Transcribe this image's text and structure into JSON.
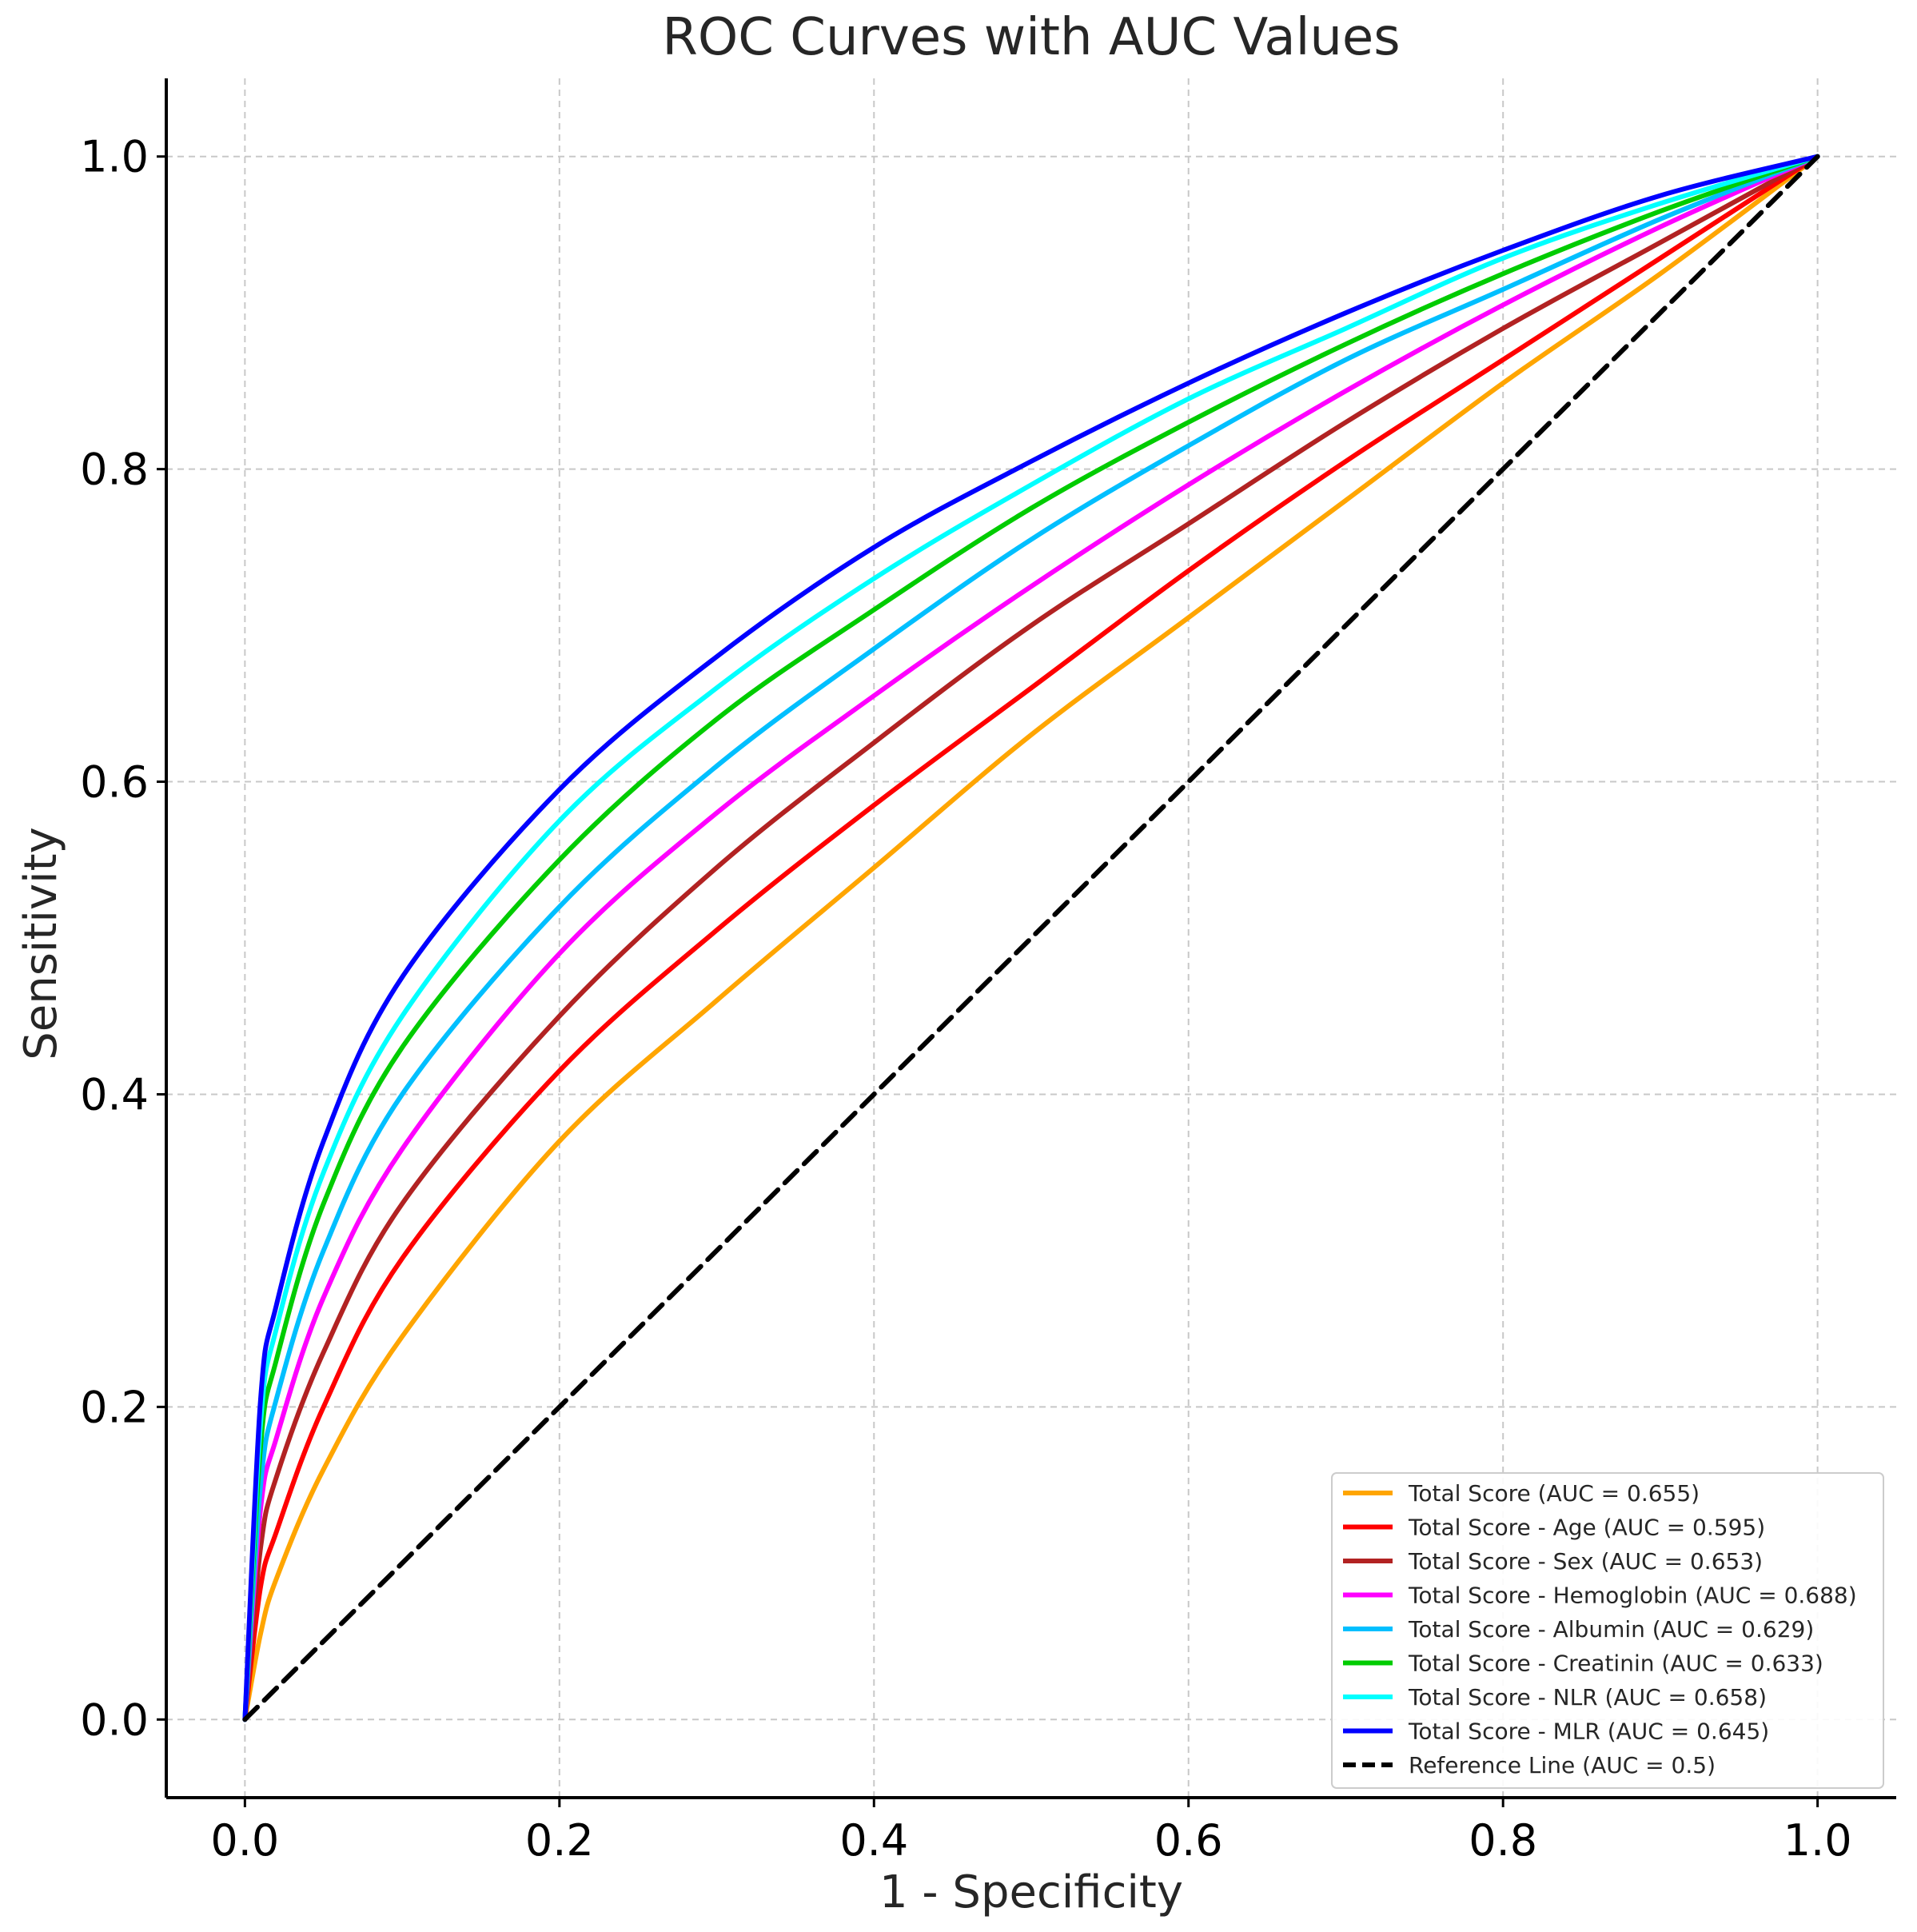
{
  "chart_data": {
    "type": "line",
    "title": "ROC Curves with AUC Values",
    "xlabel": "1 - Specificity",
    "ylabel": "Sensitivity",
    "xlim": [
      -0.05,
      1.05
    ],
    "ylim": [
      -0.05,
      1.05
    ],
    "xticks": [
      0.0,
      0.2,
      0.4,
      0.6,
      0.8,
      1.0
    ],
    "yticks": [
      0.0,
      0.2,
      0.4,
      0.6,
      0.8,
      1.0
    ],
    "xtick_labels": [
      "0.0",
      "0.2",
      "0.4",
      "0.6",
      "0.8",
      "1.0"
    ],
    "ytick_labels": [
      "0.0",
      "0.2",
      "0.4",
      "0.6",
      "0.8",
      "1.0"
    ],
    "grid": true,
    "legend_position": "bottom-right",
    "x": [
      0.0,
      0.01,
      0.02,
      0.05,
      0.1,
      0.2,
      0.3,
      0.4,
      0.5,
      0.6,
      0.7,
      0.8,
      0.9,
      1.0
    ],
    "series": [
      {
        "name": "Total Score (AUC = 0.655)",
        "color": "#ffa500",
        "dashed": false,
        "values": [
          0.0,
          0.055,
          0.09,
          0.16,
          0.245,
          0.37,
          0.46,
          0.545,
          0.63,
          0.705,
          0.78,
          0.855,
          0.925,
          1.0
        ]
      },
      {
        "name": "Total Score - Age (AUC = 0.595)",
        "color": "#ff0000",
        "dashed": false,
        "values": [
          0.0,
          0.085,
          0.12,
          0.2,
          0.295,
          0.415,
          0.505,
          0.585,
          0.66,
          0.735,
          0.805,
          0.87,
          0.935,
          1.0
        ]
      },
      {
        "name": "Total Score - Sex (AUC = 0.653)",
        "color": "#b22222",
        "dashed": false,
        "values": [
          0.0,
          0.11,
          0.155,
          0.235,
          0.33,
          0.45,
          0.545,
          0.625,
          0.7,
          0.765,
          0.83,
          0.89,
          0.945,
          1.0
        ]
      },
      {
        "name": "Total Score - Hemoglobin (AUC = 0.688)",
        "color": "#ff00ff",
        "dashed": false,
        "values": [
          0.0,
          0.135,
          0.18,
          0.27,
          0.365,
          0.49,
          0.58,
          0.655,
          0.725,
          0.79,
          0.85,
          0.905,
          0.955,
          1.0
        ]
      },
      {
        "name": "Total Score - Albumin (AUC = 0.629)",
        "color": "#00bfff",
        "dashed": false,
        "values": [
          0.0,
          0.15,
          0.205,
          0.3,
          0.4,
          0.52,
          0.61,
          0.685,
          0.755,
          0.815,
          0.87,
          0.915,
          0.96,
          1.0
        ]
      },
      {
        "name": "Total Score - Creatinin (AUC = 0.633)",
        "color": "#00cc00",
        "dashed": false,
        "values": [
          0.0,
          0.175,
          0.23,
          0.33,
          0.43,
          0.55,
          0.64,
          0.71,
          0.775,
          0.83,
          0.88,
          0.925,
          0.965,
          1.0
        ]
      },
      {
        "name": "Total Score - NLR (AUC = 0.658)",
        "color": "#00ffff",
        "dashed": false,
        "values": [
          0.0,
          0.19,
          0.25,
          0.35,
          0.45,
          0.575,
          0.66,
          0.73,
          0.79,
          0.845,
          0.89,
          0.935,
          0.97,
          1.0
        ]
      },
      {
        "name": "Total Score - MLR (AUC = 0.645)",
        "color": "#0000ff",
        "dashed": false,
        "values": [
          0.0,
          0.205,
          0.265,
          0.37,
          0.475,
          0.595,
          0.68,
          0.75,
          0.805,
          0.855,
          0.9,
          0.94,
          0.975,
          1.0
        ]
      },
      {
        "name": "Reference Line (AUC = 0.5)",
        "color": "#000000",
        "dashed": true,
        "values": [
          0.0,
          0.01,
          0.02,
          0.05,
          0.1,
          0.2,
          0.3,
          0.4,
          0.5,
          0.6,
          0.7,
          0.8,
          0.9,
          1.0
        ]
      }
    ]
  }
}
